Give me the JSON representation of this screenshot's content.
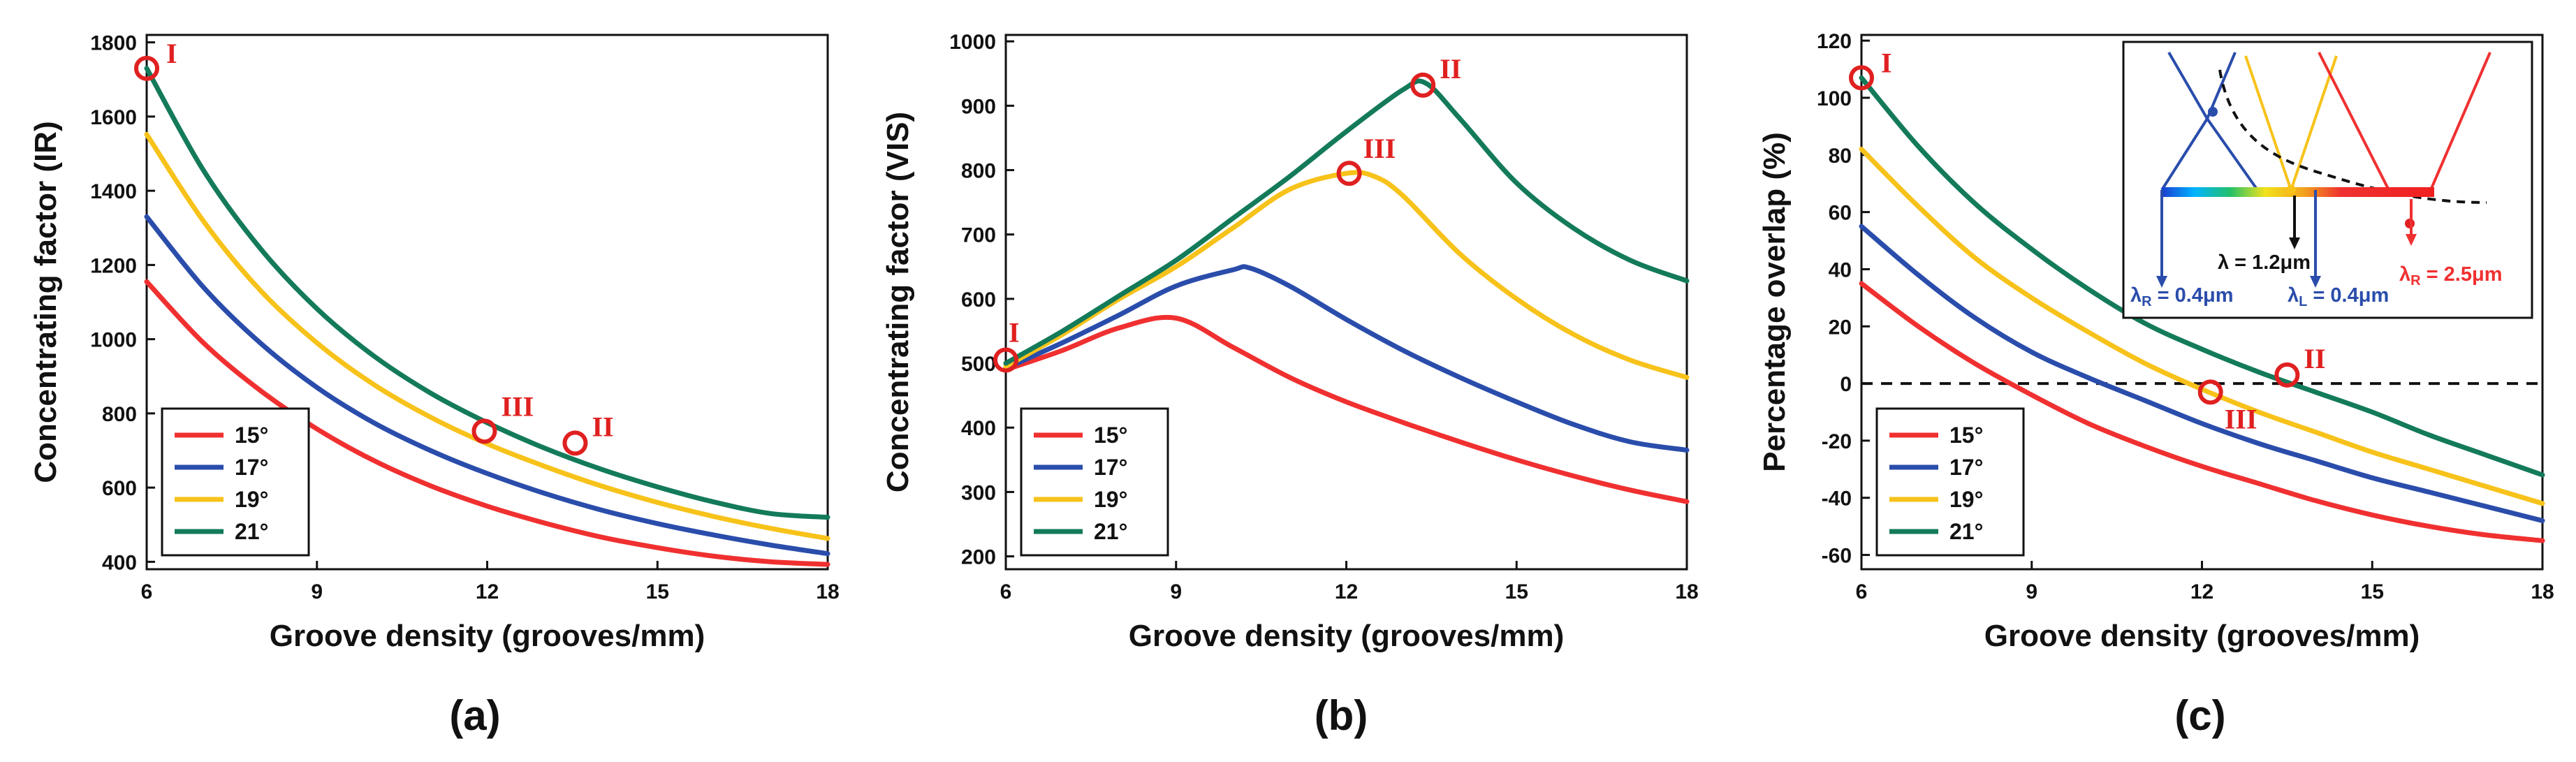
{
  "figure": {
    "colors": {
      "15": "#f03030",
      "17": "#2a4dab",
      "19": "#f7c21a",
      "21": "#137a5a",
      "marker": "#e02020"
    }
  },
  "chart_data": [
    {
      "type": "line",
      "panel_label": "(a)",
      "xlabel": "Groove density (grooves/mm)",
      "ylabel": "Concentrating factor (IR)",
      "xlim": [
        6,
        18
      ],
      "ylim": [
        380,
        1820
      ],
      "xticks": [
        6,
        9,
        12,
        15,
        18
      ],
      "yticks": [
        400,
        600,
        800,
        1000,
        1200,
        1400,
        1600,
        1800
      ],
      "legend": [
        "15°",
        "17°",
        "19°",
        "21°"
      ],
      "series": [
        {
          "name": "15°",
          "color": "#f03030",
          "x": [
            6,
            7,
            8,
            9,
            10,
            11,
            12,
            13,
            14,
            15,
            16,
            17,
            18
          ],
          "y": [
            1155,
            990,
            862,
            758,
            673,
            605,
            550,
            505,
            467,
            438,
            415,
            400,
            393
          ]
        },
        {
          "name": "17°",
          "color": "#2a4dab",
          "x": [
            6,
            7,
            8,
            9,
            10,
            11,
            12,
            13,
            14,
            15,
            16,
            17,
            18
          ],
          "y": [
            1330,
            1140,
            990,
            870,
            775,
            700,
            638,
            585,
            540,
            503,
            472,
            445,
            422
          ]
        },
        {
          "name": "19°",
          "color": "#f7c21a",
          "x": [
            6,
            7,
            8,
            9,
            10,
            11,
            12,
            13,
            14,
            15,
            16,
            17,
            18
          ],
          "y": [
            1552,
            1318,
            1132,
            990,
            878,
            790,
            718,
            658,
            605,
            560,
            522,
            490,
            463
          ]
        },
        {
          "name": "21°",
          "color": "#137a5a",
          "x": [
            6,
            7,
            8,
            9,
            10,
            11,
            12,
            13,
            14,
            15,
            16,
            17,
            18
          ],
          "y": [
            1730,
            1455,
            1245,
            1082,
            955,
            855,
            775,
            707,
            650,
            602,
            561,
            530,
            520
          ]
        }
      ],
      "markers": [
        {
          "label": "I",
          "x": 6.0,
          "y": 1730
        },
        {
          "label": "III",
          "x": 11.95,
          "y": 752
        },
        {
          "label": "II",
          "x": 13.55,
          "y": 720
        }
      ]
    },
    {
      "type": "line",
      "panel_label": "(b)",
      "xlabel": "Groove density (grooves/mm)",
      "ylabel": "Concentrating factor (VIS)",
      "xlim": [
        6,
        18
      ],
      "ylim": [
        180,
        1010
      ],
      "xticks": [
        6,
        9,
        12,
        15,
        18
      ],
      "yticks": [
        200,
        300,
        400,
        500,
        600,
        700,
        800,
        900,
        1000
      ],
      "legend": [
        "15°",
        "17°",
        "19°",
        "21°"
      ],
      "series": [
        {
          "name": "15°",
          "color": "#f03030",
          "x": [
            6,
            7,
            8,
            9,
            10,
            11,
            12,
            13,
            14,
            15,
            16,
            17,
            18
          ],
          "y": [
            490,
            520,
            555,
            570,
            525,
            478,
            440,
            408,
            378,
            350,
            325,
            303,
            285
          ]
        },
        {
          "name": "17°",
          "color": "#2a4dab",
          "x": [
            6,
            7,
            8,
            9,
            10,
            10.3,
            11,
            12,
            13,
            14,
            15,
            16,
            17,
            18
          ],
          "y": [
            492,
            532,
            575,
            620,
            645,
            648,
            620,
            568,
            520,
            478,
            440,
            405,
            378,
            365
          ]
        },
        {
          "name": "19°",
          "color": "#f7c21a",
          "x": [
            6,
            7,
            8,
            9,
            10,
            11,
            12,
            12.5,
            13,
            14,
            15,
            16,
            17,
            18
          ],
          "y": [
            495,
            545,
            600,
            650,
            710,
            770,
            795,
            790,
            760,
            670,
            600,
            545,
            505,
            478
          ]
        },
        {
          "name": "21°",
          "color": "#137a5a",
          "x": [
            6,
            7,
            8,
            9,
            10,
            11,
            12,
            13,
            13.4,
            14,
            15,
            16,
            17,
            18
          ],
          "y": [
            500,
            550,
            605,
            660,
            725,
            790,
            860,
            925,
            935,
            880,
            780,
            710,
            660,
            628
          ]
        }
      ],
      "markers": [
        {
          "label": "I",
          "x": 6.0,
          "y": 505
        },
        {
          "label": "III",
          "x": 12.05,
          "y": 795
        },
        {
          "label": "II",
          "x": 13.35,
          "y": 932
        }
      ]
    },
    {
      "type": "line",
      "panel_label": "(c)",
      "xlabel": "Groove density (grooves/mm)",
      "ylabel": "Percentage overlap (%)",
      "xlim": [
        6,
        18
      ],
      "ylim": [
        -65,
        122
      ],
      "xticks": [
        6,
        9,
        12,
        15,
        18
      ],
      "yticks": [
        -60,
        -40,
        -20,
        0,
        20,
        40,
        60,
        80,
        100,
        120
      ],
      "zero_line": 0,
      "legend": [
        "15°",
        "17°",
        "19°",
        "21°"
      ],
      "series": [
        {
          "name": "15°",
          "color": "#f03030",
          "x": [
            6,
            7,
            8,
            9,
            10,
            11,
            12,
            13,
            14,
            15,
            16,
            17,
            18
          ],
          "y": [
            35,
            20,
            7,
            -4,
            -14,
            -22,
            -29,
            -35,
            -41,
            -46,
            -50,
            -53,
            -55
          ]
        },
        {
          "name": "17°",
          "color": "#2a4dab",
          "x": [
            6,
            7,
            8,
            9,
            10,
            11,
            12,
            13,
            14,
            15,
            16,
            17,
            18
          ],
          "y": [
            55,
            38,
            23,
            11,
            2,
            -6,
            -14,
            -21,
            -27,
            -33,
            -38,
            -43,
            -48
          ]
        },
        {
          "name": "19°",
          "color": "#f7c21a",
          "x": [
            6,
            7,
            8,
            9,
            10,
            11,
            12,
            13,
            14,
            15,
            16,
            17,
            18
          ],
          "y": [
            82,
            62,
            44,
            30,
            18,
            7,
            -2,
            -10,
            -17,
            -24,
            -30,
            -36,
            -42
          ]
        },
        {
          "name": "21°",
          "color": "#137a5a",
          "x": [
            6,
            7,
            8,
            9,
            10,
            11,
            12,
            13,
            14,
            15,
            16,
            17,
            18
          ],
          "y": [
            107,
            83,
            63,
            47,
            33,
            21,
            12,
            4,
            -3,
            -10,
            -18,
            -25,
            -32
          ]
        }
      ],
      "markers": [
        {
          "label": "I",
          "x": 6.0,
          "y": 107
        },
        {
          "label": "III",
          "x": 12.15,
          "y": -3
        },
        {
          "label": "II",
          "x": 13.5,
          "y": 3
        }
      ],
      "inset": {
        "lambda_center": "λ = 1.2μm",
        "lambda_R_blue": "λ",
        "lambda_R_blue_sub": "R",
        "lambda_R_blue_val": " = 0.4μm",
        "lambda_L_blue": "λ",
        "lambda_L_blue_sub": "L",
        "lambda_L_blue_val": " = 0.4μm",
        "lambda_R_red": "λ",
        "lambda_R_red_sub": "R",
        "lambda_R_red_val": " = 2.5μm"
      }
    }
  ]
}
